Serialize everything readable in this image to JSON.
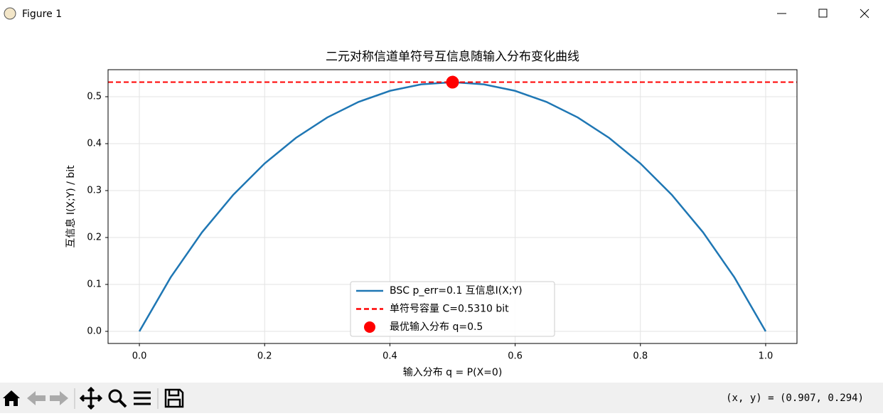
{
  "window": {
    "title": "Figure 1"
  },
  "status": {
    "coordinates": "(x, y) = (0.907, 0.294)"
  },
  "chart_data": {
    "type": "line",
    "title": "二元对称信道单符号互信息随输入分布变化曲线",
    "x_label": "输入分布 q = P(X=0)",
    "y_label": "互信息 I(X;Y) / bit",
    "xlim": [
      -0.05,
      1.05
    ],
    "ylim": [
      -0.0258,
      0.5576
    ],
    "xticks": [
      {
        "value": 0,
        "label": "0.0"
      },
      0.2,
      0.4,
      0.6,
      0.8,
      {
        "value": 1,
        "label": "1.0"
      }
    ],
    "yticks": [
      {
        "value": 0,
        "label": "0.0"
      },
      0.1,
      0.2,
      0.3,
      0.4,
      0.5
    ],
    "grid": true,
    "legend": "lower center",
    "series": [
      {
        "name": "BSC p_err=0.1 互信息I(X;Y)",
        "type": "line",
        "color": "#1f77b4",
        "x": [
          0,
          0.05,
          0.1,
          0.15,
          0.2,
          0.25,
          0.3,
          0.35,
          0.4,
          0.45,
          0.5,
          0.55,
          0.6,
          0.65,
          0.7,
          0.75,
          0.8,
          0.85,
          0.9,
          0.95,
          1
        ],
        "values": [
          0,
          0.1152,
          0.2111,
          0.2912,
          0.3577,
          0.4123,
          0.4558,
          0.489,
          0.5125,
          0.5264,
          0.531,
          0.5264,
          0.5125,
          0.489,
          0.4558,
          0.4123,
          0.3577,
          0.2912,
          0.2111,
          0.1152,
          0
        ]
      },
      {
        "name": "单符号容量 C=0.5310 bit",
        "type": "hline",
        "color": "#ff0000",
        "value": 0.531
      },
      {
        "name": "最优输入分布 q=0.5",
        "type": "scatter",
        "color": "#ff0000",
        "x": [
          0.5
        ],
        "values": [
          0.531
        ]
      }
    ]
  }
}
